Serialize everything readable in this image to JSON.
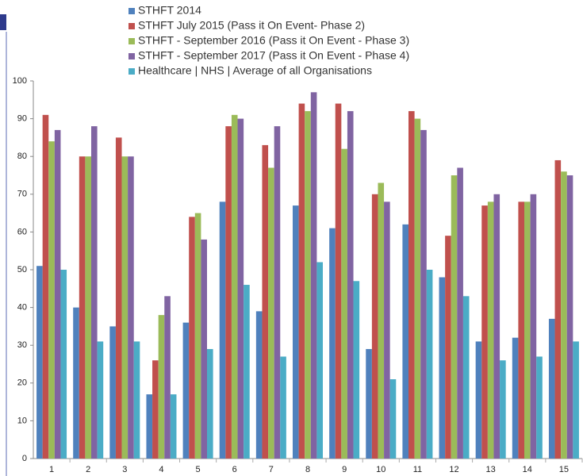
{
  "chart_data": {
    "type": "bar",
    "categories": [
      "1",
      "2",
      "3",
      "4",
      "5",
      "6",
      "7",
      "8",
      "9",
      "10",
      "11",
      "12",
      "13",
      "14",
      "15"
    ],
    "series": [
      {
        "name": "STHFT 2014",
        "color": "#4f81bd",
        "values": [
          51,
          40,
          35,
          17,
          36,
          68,
          39,
          67,
          61,
          29,
          62,
          48,
          31,
          32,
          37
        ]
      },
      {
        "name": "STHFT July 2015 (Pass it On Event- Phase 2)",
        "color": "#c0504d",
        "values": [
          91,
          80,
          85,
          26,
          64,
          88,
          83,
          94,
          94,
          70,
          92,
          59,
          67,
          68,
          79
        ]
      },
      {
        "name": "STHFT - September 2016 (Pass it On Event - Phase 3)",
        "color": "#9bbb59",
        "values": [
          84,
          80,
          80,
          38,
          65,
          91,
          77,
          92,
          82,
          73,
          90,
          75,
          68,
          68,
          76
        ]
      },
      {
        "name": "STHFT - September 2017 (Pass it On Event - Phase 4)",
        "color": "#8064a2",
        "values": [
          87,
          88,
          80,
          43,
          58,
          90,
          88,
          97,
          92,
          68,
          87,
          77,
          70,
          70,
          75
        ]
      },
      {
        "name": "Healthcare | NHS | Average of all Organisations",
        "color": "#4bacc6",
        "values": [
          50,
          31,
          31,
          17,
          29,
          46,
          27,
          52,
          47,
          21,
          50,
          43,
          26,
          27,
          31
        ]
      }
    ],
    "ylim": [
      0,
      100
    ],
    "yticks": [
      0,
      10,
      20,
      30,
      40,
      50,
      60,
      70,
      80,
      90,
      100
    ],
    "grid": false
  }
}
